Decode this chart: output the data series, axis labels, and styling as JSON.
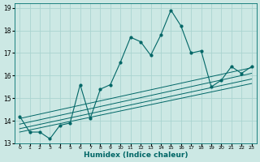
{
  "title": "",
  "xlabel": "Humidex (Indice chaleur)",
  "background_color": "#cce8e4",
  "line_color": "#006666",
  "grid_color": "#aad4d0",
  "x_data": [
    0,
    1,
    2,
    3,
    4,
    5,
    6,
    7,
    8,
    9,
    10,
    11,
    12,
    13,
    14,
    15,
    16,
    17,
    18,
    19,
    20,
    21,
    22,
    23
  ],
  "main_y": [
    14.2,
    13.5,
    13.5,
    13.2,
    13.8,
    13.9,
    15.6,
    14.1,
    15.4,
    15.6,
    16.6,
    17.7,
    17.5,
    16.9,
    17.8,
    18.9,
    18.2,
    17.0,
    17.1,
    15.5,
    15.8,
    16.4,
    16.1,
    16.4
  ],
  "trend_lines": [
    {
      "x0": 0,
      "y0": 14.1,
      "x1": 23,
      "y1": 16.35
    },
    {
      "x0": 0,
      "y0": 13.85,
      "x1": 23,
      "y1": 16.1
    },
    {
      "x0": 0,
      "y0": 13.65,
      "x1": 23,
      "y1": 15.85
    },
    {
      "x0": 0,
      "y0": 13.5,
      "x1": 23,
      "y1": 15.65
    }
  ],
  "xlim": [
    -0.5,
    23.5
  ],
  "ylim": [
    13.0,
    19.2
  ],
  "yticks": [
    13,
    14,
    15,
    16,
    17,
    18,
    19
  ],
  "xticks": [
    0,
    1,
    2,
    3,
    4,
    5,
    6,
    7,
    8,
    9,
    10,
    11,
    12,
    13,
    14,
    15,
    16,
    17,
    18,
    19,
    20,
    21,
    22,
    23
  ]
}
